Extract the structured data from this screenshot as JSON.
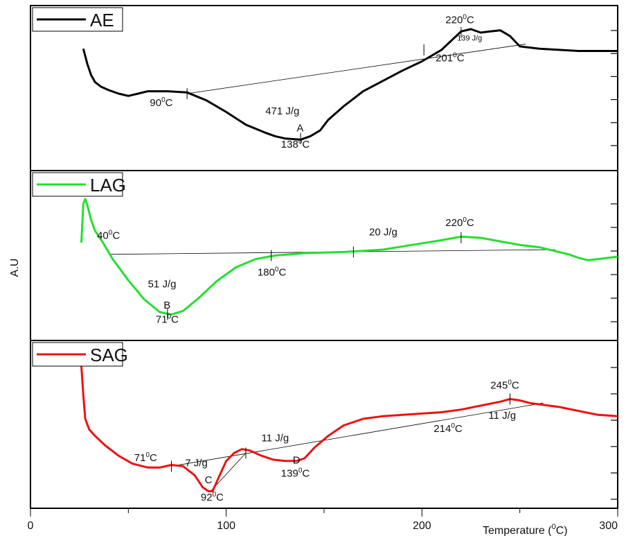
{
  "chart_data": {
    "type": "line",
    "ylabel": "A.U",
    "xlabel_prefix": "Temperature (",
    "xlabel_sup": "0",
    "xlabel_suffix": "C)",
    "xlim": [
      0,
      300
    ],
    "x_tick_labels": [
      "0",
      "100",
      "200",
      "300"
    ],
    "x_ticks": [
      0,
      100,
      200,
      300
    ],
    "panels": [
      {
        "name": "AE",
        "color": "#000000",
        "ylim": [
          0,
          1
        ],
        "x": [
          27,
          29,
          31,
          33,
          36,
          40,
          45,
          50,
          55,
          60,
          70,
          80,
          90,
          100,
          110,
          120,
          125,
          130,
          138,
          143,
          148,
          152,
          160,
          170,
          180,
          190,
          200,
          210,
          215,
          220,
          225,
          230,
          235,
          240,
          245,
          250,
          260,
          270,
          280,
          290,
          300
        ],
        "y": [
          0.83,
          0.7,
          0.6,
          0.54,
          0.5,
          0.47,
          0.44,
          0.42,
          0.44,
          0.46,
          0.46,
          0.45,
          0.38,
          0.28,
          0.17,
          0.1,
          0.07,
          0.05,
          0.04,
          0.07,
          0.12,
          0.21,
          0.33,
          0.46,
          0.55,
          0.64,
          0.72,
          0.82,
          0.9,
          0.98,
          1.0,
          0.97,
          0.98,
          0.99,
          0.94,
          0.85,
          0.83,
          0.82,
          0.81,
          0.81,
          0.81
        ],
        "baselines": [
          [
            80,
            0.44,
            253,
            0.87
          ]
        ],
        "markers": [
          [
            80,
            0.44
          ],
          [
            138,
            0.05
          ],
          [
            201,
            0.82
          ],
          [
            220,
            0.97
          ]
        ],
        "labels": [
          {
            "text": "90",
            "sup": "0",
            "suffix": "C",
            "x": 61,
            "y": 0.33
          },
          {
            "text": "471 J/g",
            "sup": "",
            "suffix": "",
            "x": 120,
            "y": 0.26
          },
          {
            "text": "A",
            "sup": "",
            "suffix": "",
            "x": 136,
            "y": 0.11
          },
          {
            "text": "138",
            "sup": "0",
            "suffix": "C",
            "x": 128,
            "y": -0.03
          },
          {
            "text": "220",
            "sup": "0",
            "suffix": "C",
            "x": 212,
            "y": 1.05
          },
          {
            "text": "139 J/g",
            "sup": "",
            "suffix": "",
            "x": 218,
            "y": 0.9,
            "small": true
          },
          {
            "text": "201",
            "sup": "0",
            "suffix": "C",
            "x": 207,
            "y": 0.72
          }
        ]
      },
      {
        "name": "LAG",
        "color": "#22e02e",
        "ylim": [
          0,
          1
        ],
        "x": [
          26,
          27,
          28,
          29,
          31,
          33,
          37,
          42,
          50,
          58,
          66,
          72,
          78,
          86,
          95,
          105,
          115,
          125,
          140,
          160,
          180,
          195,
          210,
          220,
          230,
          240,
          250,
          260,
          270,
          275,
          280,
          285,
          290,
          295,
          300
        ],
        "y": [
          0.66,
          0.99,
          1.03,
          0.98,
          0.85,
          0.76,
          0.66,
          0.52,
          0.34,
          0.18,
          0.07,
          0.05,
          0.08,
          0.19,
          0.33,
          0.45,
          0.52,
          0.55,
          0.57,
          0.58,
          0.6,
          0.64,
          0.68,
          0.71,
          0.7,
          0.67,
          0.64,
          0.62,
          0.58,
          0.56,
          0.53,
          0.51,
          0.52,
          0.53,
          0.54
        ],
        "baselines": [
          [
            40,
            0.56,
            268,
            0.6
          ]
        ],
        "markers": [
          [
            70,
            0.05
          ],
          [
            123,
            0.55
          ],
          [
            165,
            0.58
          ],
          [
            220,
            0.7
          ]
        ],
        "labels": [
          {
            "text": "40",
            "sup": "0",
            "suffix": "C",
            "x": 34,
            "y": 0.69
          },
          {
            "text": "51 J/g",
            "sup": "",
            "suffix": "",
            "x": 60,
            "y": 0.28
          },
          {
            "text": "B",
            "sup": "",
            "suffix": "",
            "x": 68,
            "y": 0.1
          },
          {
            "text": "71",
            "sup": "0",
            "suffix": "C",
            "x": 64,
            "y": -0.02
          },
          {
            "text": "180",
            "sup": "0",
            "suffix": "C",
            "x": 116,
            "y": 0.38
          },
          {
            "text": "20 J/g",
            "sup": "",
            "suffix": "",
            "x": 173,
            "y": 0.72
          },
          {
            "text": "220",
            "sup": "0",
            "suffix": "C",
            "x": 212,
            "y": 0.8
          }
        ]
      },
      {
        "name": "SAG",
        "color": "#ee1111",
        "ylim": [
          0,
          1
        ],
        "x": [
          26,
          27,
          28,
          30,
          33,
          38,
          45,
          52,
          60,
          66,
          72,
          78,
          84,
          88,
          91,
          93,
          96,
          100,
          104,
          108,
          112,
          118,
          124,
          130,
          136,
          140,
          145,
          152,
          160,
          170,
          180,
          190,
          200,
          210,
          220,
          230,
          240,
          245,
          250,
          255,
          260,
          270,
          280,
          290,
          300
        ],
        "y": [
          1.0,
          0.78,
          0.6,
          0.52,
          0.47,
          0.4,
          0.32,
          0.26,
          0.23,
          0.23,
          0.25,
          0.24,
          0.17,
          0.08,
          0.05,
          0.05,
          0.15,
          0.28,
          0.34,
          0.37,
          0.36,
          0.32,
          0.29,
          0.28,
          0.28,
          0.3,
          0.38,
          0.47,
          0.55,
          0.6,
          0.62,
          0.63,
          0.64,
          0.65,
          0.67,
          0.7,
          0.73,
          0.75,
          0.74,
          0.72,
          0.71,
          0.69,
          0.66,
          0.63,
          0.62
        ],
        "baselines": [
          [
            72,
            0.24,
            262,
            0.72
          ],
          [
            92,
            0.05,
            110,
            0.34
          ]
        ],
        "markers": [
          [
            72,
            0.24
          ],
          [
            110,
            0.34
          ],
          [
            245,
            0.75
          ]
        ],
        "labels": [
          {
            "text": "71",
            "sup": "0",
            "suffix": "C",
            "x": 53,
            "y": 0.28
          },
          {
            "text": "7 J/g",
            "sup": "",
            "suffix": "",
            "x": 79,
            "y": 0.24
          },
          {
            "text": "C",
            "sup": "",
            "suffix": "",
            "x": 89,
            "y": 0.11
          },
          {
            "text": "92",
            "sup": "0",
            "suffix": "C",
            "x": 87,
            "y": -0.02
          },
          {
            "text": "11 J/g",
            "sup": "",
            "suffix": "",
            "x": 118,
            "y": 0.43
          },
          {
            "text": "D",
            "sup": "",
            "suffix": "",
            "x": 134,
            "y": 0.26
          },
          {
            "text": "139",
            "sup": "0",
            "suffix": "C",
            "x": 128,
            "y": 0.16
          },
          {
            "text": "214",
            "sup": "0",
            "suffix": "C",
            "x": 206,
            "y": 0.5
          },
          {
            "text": "245",
            "sup": "0",
            "suffix": "C",
            "x": 235,
            "y": 0.83
          },
          {
            "text": "11 J/g",
            "sup": "",
            "suffix": "",
            "x": 234,
            "y": 0.6
          }
        ]
      }
    ]
  }
}
